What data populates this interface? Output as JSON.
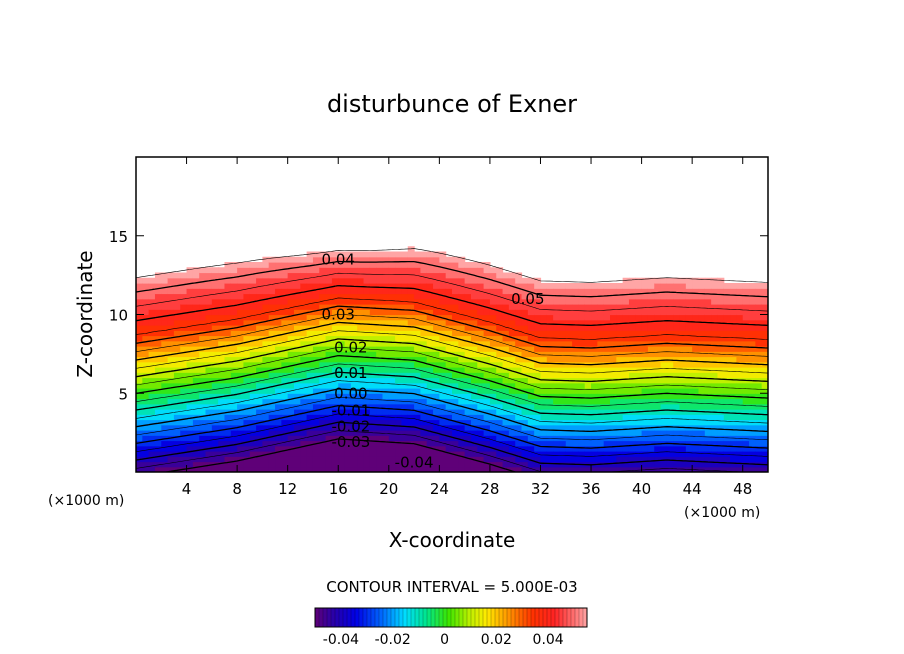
{
  "chart_data": {
    "type": "heatmap",
    "title": "disturbunce of Exner",
    "xlabel": "X-coordinate",
    "ylabel": "Z-coordinate",
    "x_unit_left": "(×1000 m)",
    "x_unit_right": "(×1000 m)",
    "xlim": [
      0,
      50
    ],
    "ylim": [
      0,
      20
    ],
    "x_ticks": [
      4,
      8,
      12,
      16,
      20,
      24,
      28,
      32,
      36,
      40,
      44,
      48
    ],
    "y_ticks": [
      5,
      10,
      15
    ],
    "contour_interval_text": "CONTOUR INTERVAL = 5.000E-03",
    "contour_labels": [
      {
        "text": "0.05",
        "x": 31,
        "z": 11.0
      },
      {
        "text": "0.04",
        "x": 16,
        "z": 13.5
      },
      {
        "text": "0.03",
        "x": 16,
        "z": 10.0
      },
      {
        "text": "0.02",
        "x": 17,
        "z": 7.9
      },
      {
        "text": "0.01",
        "x": 17,
        "z": 6.3
      },
      {
        "text": "0.00",
        "x": 17,
        "z": 5.0
      },
      {
        "text": "-0.01",
        "x": 17,
        "z": 3.9
      },
      {
        "text": "-0.02",
        "x": 17,
        "z": 2.9
      },
      {
        "text": "-0.03",
        "x": 17,
        "z": 1.9
      },
      {
        "text": "-0.04",
        "x": 22,
        "z": 0.6
      }
    ],
    "colorbar": {
      "range": [
        -0.05,
        0.055
      ],
      "tick_labels": [
        "-0.04",
        "-0.02",
        "0",
        "0.02",
        "0.04"
      ],
      "tick_values": [
        -0.04,
        -0.02,
        0,
        0.02,
        0.04
      ]
    },
    "field": {
      "white_above": 0.055,
      "min_value": -0.05,
      "max_value": 0.055,
      "grid_on": false
    }
  }
}
